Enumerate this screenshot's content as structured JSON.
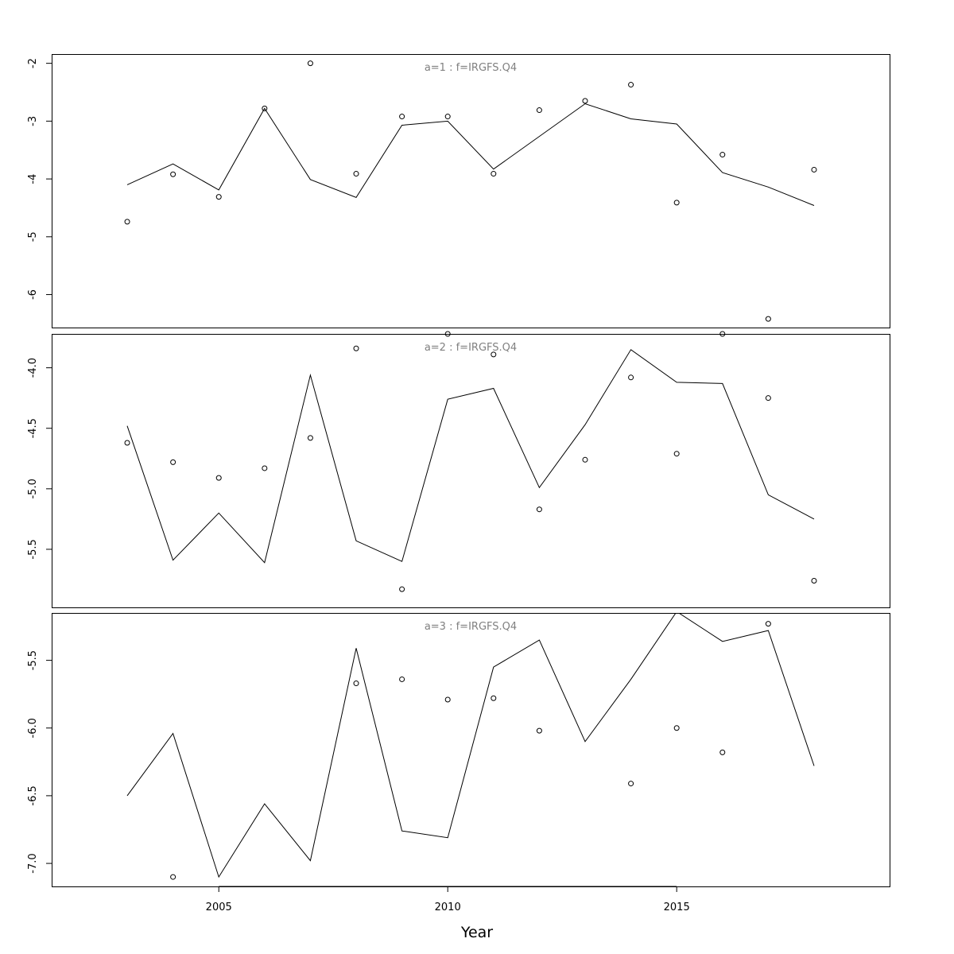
{
  "chart_data": {
    "type": "line",
    "xlabel": "Year",
    "xlim": [
      2001.35,
      2019.65
    ],
    "xticks": [
      2005,
      2010,
      2015
    ],
    "grid": false,
    "colors": {
      "line": "#000000",
      "points": "#000000",
      "title": "#808080",
      "frame": "#000000"
    },
    "panels": [
      {
        "title": "a=1 : f=IRGFS.Q4",
        "ylim": [
          -6.57,
          -1.84
        ],
        "yticks": [
          -2,
          -3,
          -4,
          -5,
          -6
        ],
        "ytick_labels": [
          "-2",
          "-3",
          "-4",
          "-5",
          "-6"
        ],
        "series": [
          {
            "type": "line",
            "x": [
              2003,
              2004,
              2005,
              2006,
              2007,
              2008,
              2009,
              2010,
              2011,
              2013,
              2014,
              2015,
              2016,
              2017,
              2018
            ],
            "y": [
              -4.1,
              -3.74,
              -4.19,
              -2.78,
              -4.01,
              -4.32,
              -3.07,
              -3.0,
              -3.83,
              -2.7,
              -2.96,
              -3.05,
              -3.89,
              -4.14,
              -4.46
            ]
          },
          {
            "type": "scatter",
            "x": [
              2003,
              2004,
              2005,
              2006,
              2007,
              2008,
              2009,
              2010,
              2011,
              2012,
              2013,
              2014,
              2015,
              2016,
              2017,
              2018
            ],
            "y": [
              -4.74,
              -3.92,
              -4.31,
              -2.78,
              -2.0,
              -3.91,
              -2.92,
              -2.92,
              -3.91,
              -2.81,
              -2.65,
              -2.37,
              -4.41,
              -3.58,
              -6.42,
              -3.84
            ]
          }
        ]
      },
      {
        "title": "a=2 : f=IRGFS.Q4",
        "ylim": [
          -5.98,
          -3.72
        ],
        "yticks": [
          -4.0,
          -4.5,
          -5.0,
          -5.5
        ],
        "ytick_labels": [
          "-4.0",
          "-4.5",
          "-5.0",
          "-5.5"
        ],
        "series": [
          {
            "type": "line",
            "x": [
              2003,
              2004,
              2005,
              2006,
              2007,
              2008,
              2009,
              2010,
              2011,
              2012,
              2013,
              2014,
              2015,
              2016,
              2017,
              2018
            ],
            "y": [
              -4.48,
              -5.59,
              -5.2,
              -5.61,
              -4.06,
              -5.43,
              -5.6,
              -4.26,
              -4.17,
              -4.99,
              -4.47,
              -3.85,
              -4.12,
              -4.13,
              -5.05,
              -5.25
            ]
          },
          {
            "type": "scatter",
            "x": [
              2003,
              2004,
              2005,
              2006,
              2007,
              2008,
              2009,
              2010,
              2011,
              2012,
              2013,
              2014,
              2015,
              2016,
              2017,
              2018
            ],
            "y": [
              -4.62,
              -4.78,
              -4.91,
              -4.83,
              -4.58,
              -3.84,
              -5.83,
              -3.72,
              -3.89,
              -5.17,
              -4.76,
              -4.08,
              -4.71,
              -3.72,
              -4.25,
              -5.76
            ]
          }
        ]
      },
      {
        "title": "a=3 : f=IRGFS.Q4",
        "ylim": [
          -7.17,
          -5.15
        ],
        "yticks": [
          -5.5,
          -6.0,
          -6.5,
          -7.0
        ],
        "ytick_labels": [
          "-5.5",
          "-6.0",
          "-6.5",
          "-7.0"
        ],
        "series": [
          {
            "type": "line",
            "x": [
              2003,
              2004,
              2005,
              2006,
              2007,
              2008,
              2009,
              2010,
              2011,
              2012,
              2013,
              2014,
              2015,
              2016,
              2017,
              2018
            ],
            "y": [
              -6.5,
              -6.04,
              -7.1,
              -6.56,
              -6.98,
              -5.41,
              -6.76,
              -6.81,
              -5.55,
              -5.35,
              -6.1,
              -5.64,
              -5.14,
              -5.36,
              -5.28,
              -6.28
            ]
          },
          {
            "type": "scatter",
            "x": [
              2004,
              2008,
              2009,
              2010,
              2011,
              2012,
              2014,
              2015,
              2016,
              2017
            ],
            "y": [
              -7.1,
              -5.67,
              -5.64,
              -5.79,
              -5.78,
              -6.02,
              -6.41,
              -6.0,
              -6.18,
              -5.23
            ]
          }
        ]
      }
    ]
  }
}
